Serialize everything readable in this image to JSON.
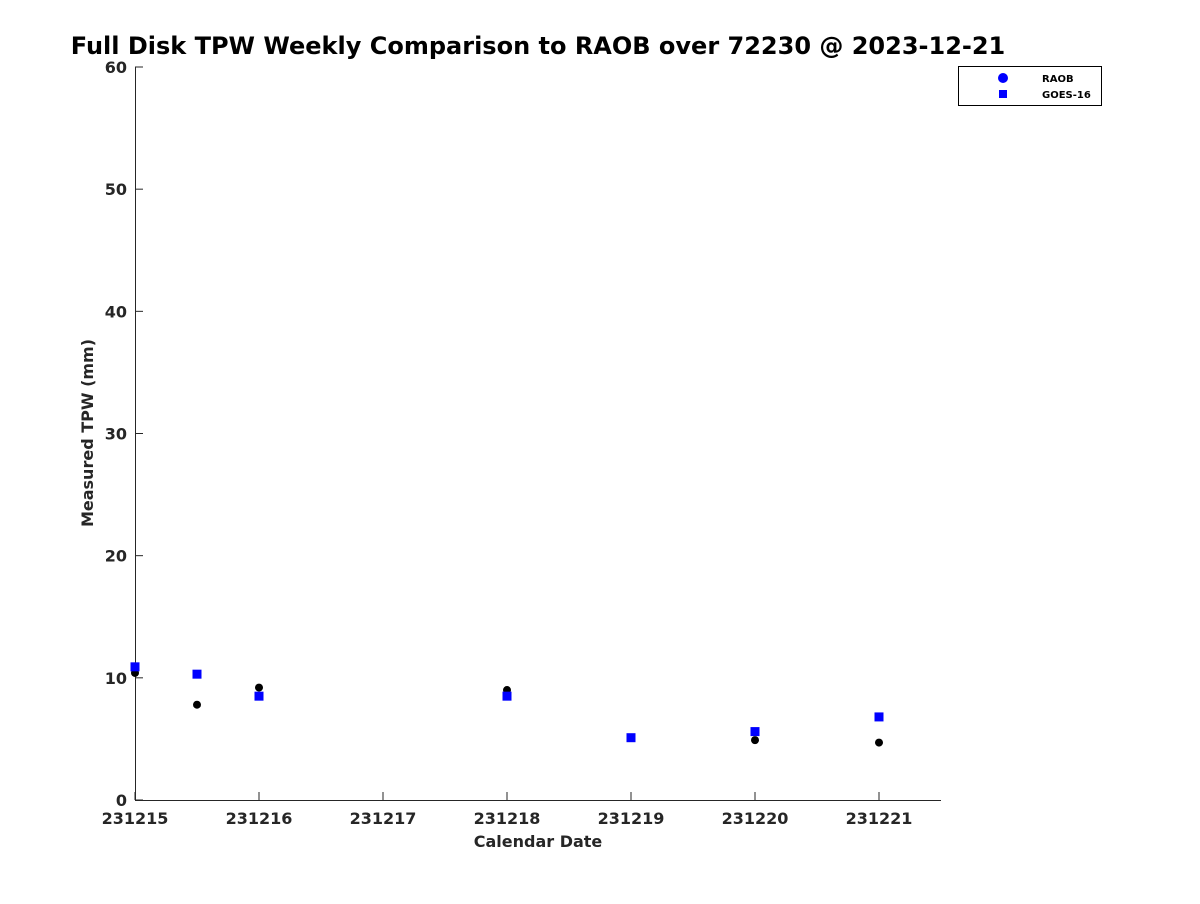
{
  "chart_data": {
    "type": "scatter",
    "title": "Full Disk TPW Weekly Comparison to RAOB over 72230 @ 2023-12-21",
    "xlabel": "Calendar Date",
    "ylabel": "Measured TPW (mm)",
    "xlim": [
      0,
      6.5
    ],
    "ylim": [
      0,
      60
    ],
    "x_ticks": [
      0,
      1,
      2,
      3,
      4,
      5,
      6
    ],
    "x_tick_labels": [
      "231215",
      "231216",
      "231217",
      "231218",
      "231219",
      "231220",
      "231221"
    ],
    "y_ticks": [
      0,
      10,
      20,
      30,
      40,
      50,
      60
    ],
    "y_tick_labels": [
      "0",
      "10",
      "20",
      "30",
      "40",
      "50",
      "60"
    ],
    "grid": false,
    "legend_position": "top-right",
    "series": [
      {
        "name": "RAOB",
        "marker": "circle",
        "color": "#000000",
        "legend_color": "#0000ff",
        "x": [
          0,
          0.5,
          1,
          3,
          4,
          5,
          6
        ],
        "y": [
          10.4,
          7.8,
          9.2,
          9.0,
          5.1,
          4.9,
          4.7
        ]
      },
      {
        "name": "GOES-16",
        "marker": "square",
        "color": "#0000ff",
        "legend_color": "#0000ff",
        "x": [
          0,
          0.5,
          1,
          3,
          4,
          5,
          6
        ],
        "y": [
          10.9,
          10.3,
          8.5,
          8.5,
          5.1,
          5.6,
          6.8
        ]
      }
    ]
  }
}
